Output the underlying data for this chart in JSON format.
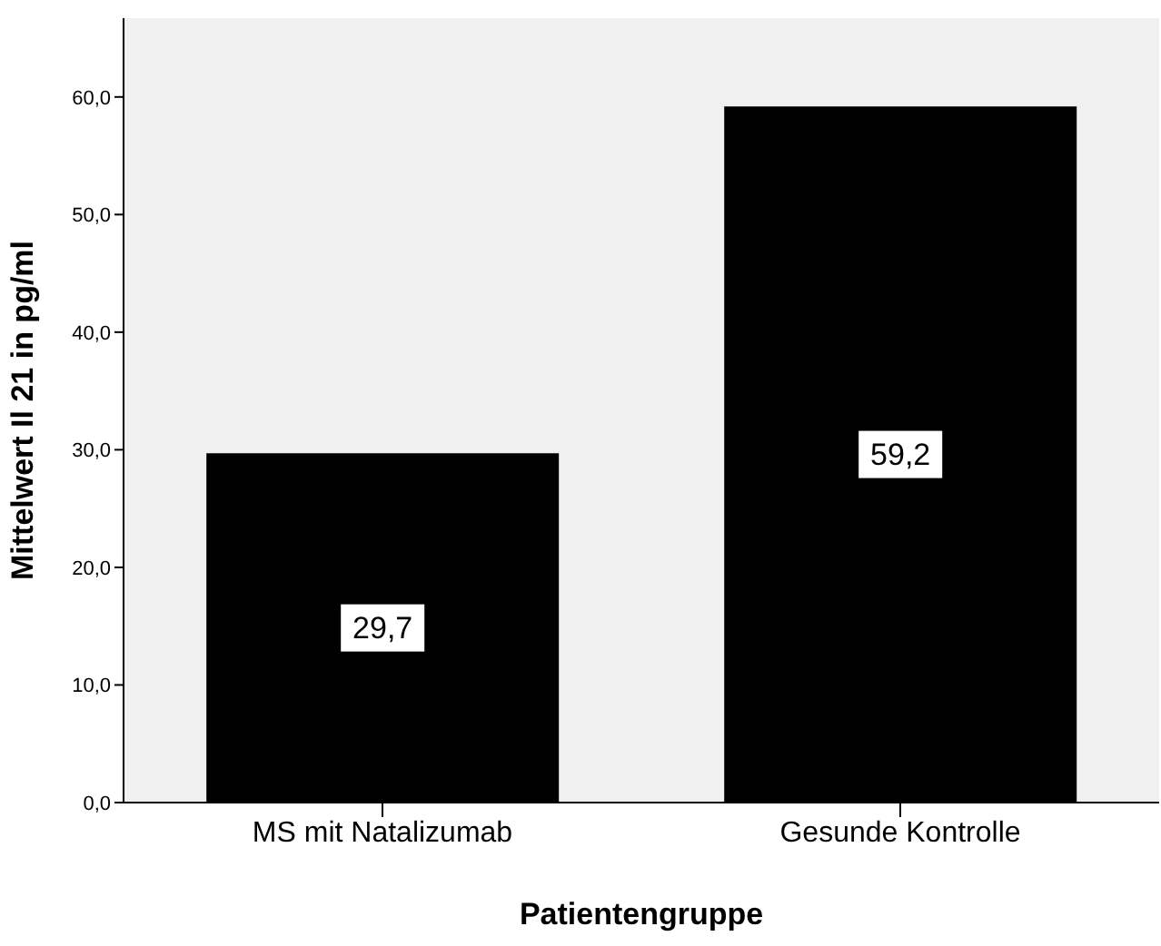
{
  "chart_data": {
    "type": "bar",
    "xlabel": "Patientengruppe",
    "ylabel": "Mittelwert Il 21 in pg/ml",
    "categories": [
      "MS mit Natalizumab",
      "Gesunde Kontrolle"
    ],
    "values": [
      29.7,
      59.2
    ],
    "color": "#000000",
    "value_labels": [
      "29,7",
      "59,2"
    ],
    "ylim": [
      0,
      66.7
    ],
    "yticks": [
      {
        "value": 0,
        "label": "0,0"
      },
      {
        "value": 10,
        "label": "10,0"
      },
      {
        "value": 20,
        "label": "20,0"
      },
      {
        "value": 30,
        "label": "30,0"
      },
      {
        "value": 40,
        "label": "40,0"
      },
      {
        "value": 50,
        "label": "50,0"
      },
      {
        "value": 60,
        "label": "60,0"
      }
    ],
    "grid": false
  }
}
